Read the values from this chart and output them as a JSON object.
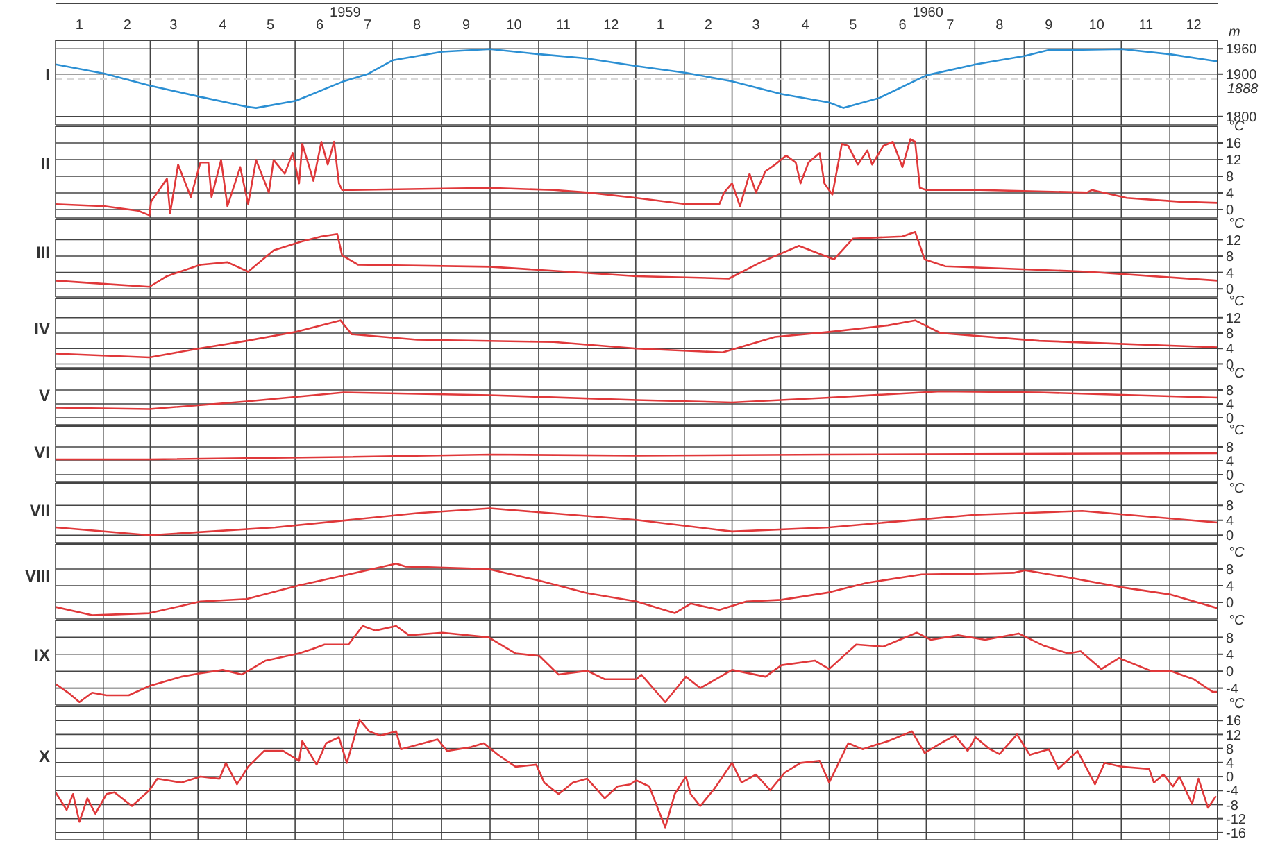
{
  "chart_data": [
    {
      "type": "line",
      "title": "I",
      "ylabel": "m",
      "color": "#2b8fd3",
      "grid": true,
      "xlim": [
        "1959-01-01",
        "1960-12-31"
      ],
      "x2lim": [
        "1959-01-01",
        "1960-12-31"
      ],
      "xticks": [
        {
          "value": "1959-01-16",
          "label": "1"
        },
        {
          "value": "1959-02-15",
          "label": "2"
        },
        {
          "value": "1959-03-16",
          "label": "3"
        },
        {
          "value": "1959-04-16",
          "label": "4"
        },
        {
          "value": "1959-05-16",
          "label": "5"
        },
        {
          "value": "1959-06-16",
          "label": "6"
        },
        {
          "value": "1959-07-16",
          "label": "7"
        },
        {
          "value": "1959-08-16",
          "label": "8"
        },
        {
          "value": "1959-09-16",
          "label": "9"
        },
        {
          "value": "1959-10-16",
          "label": "10"
        },
        {
          "value": "1959-11-16",
          "label": "11"
        },
        {
          "value": "1959-12-16",
          "label": "12"
        },
        {
          "value": "1960-01-16",
          "label": "1"
        },
        {
          "value": "1960-02-15",
          "label": "2"
        },
        {
          "value": "1960-03-16",
          "label": "3"
        },
        {
          "value": "1960-04-16",
          "label": "4"
        },
        {
          "value": "1960-05-16",
          "label": "5"
        },
        {
          "value": "1960-06-16",
          "label": "6"
        },
        {
          "value": "1960-07-16",
          "label": "7"
        },
        {
          "value": "1960-08-16",
          "label": "8"
        },
        {
          "value": "1960-09-16",
          "label": "9"
        },
        {
          "value": "1960-10-16",
          "label": "10"
        },
        {
          "value": "1960-11-16",
          "label": "11"
        },
        {
          "value": "1960-12-16",
          "label": "12"
        }
      ],
      "x2ticks": [
        {
          "value": "1959-07-02",
          "label": "1959"
        },
        {
          "value": "1960-07-02",
          "label": "1960"
        }
      ],
      "ylim": [
        1780,
        1980
      ],
      "yticks": [
        1800,
        1900,
        1960
      ],
      "ref_lines": [
        {
          "axis": "y",
          "value": 1888,
          "label": "1888",
          "color": "#d8d8d8",
          "line_style": "dashed"
        }
      ],
      "x": [
        "1959-01-01",
        "1959-02-01",
        "1959-03-01",
        "1959-04-01",
        "1959-05-01",
        "1959-05-07",
        "1959-06-01",
        "1959-07-01",
        "1959-07-16",
        "1959-08-01",
        "1959-09-01",
        "1959-10-01",
        "1959-11-01",
        "1959-12-01",
        "1960-01-01",
        "1960-02-01",
        "1960-03-01",
        "1960-04-01",
        "1960-05-01",
        "1960-05-10",
        "1960-06-01",
        "1960-07-01",
        "1960-08-01",
        "1960-09-01",
        "1960-09-16",
        "1960-10-01",
        "1960-11-01",
        "1960-12-01",
        "1960-12-31"
      ],
      "values": [
        1923,
        1901,
        1873,
        1847,
        1823,
        1820,
        1837,
        1883,
        1900,
        1933,
        1953,
        1959,
        1947,
        1937,
        1919,
        1903,
        1883,
        1853,
        1833,
        1820,
        1843,
        1897,
        1923,
        1943,
        1957,
        1957,
        1959,
        1947,
        1930
      ]
    },
    {
      "type": "line",
      "title": "II",
      "ylabel": "°C",
      "color": "#e0383a",
      "grid": true,
      "tick_labels": "y",
      "xlim": [
        "1959-01-01",
        "1960-12-31"
      ],
      "xticks": [
        {
          "value": "1959-01-16",
          "label": null
        },
        {
          "value": "1959-02-15",
          "label": null
        },
        {
          "value": "1959-03-16",
          "label": null
        },
        {
          "value": "1959-04-16",
          "label": null
        },
        {
          "value": "1959-05-16",
          "label": null
        },
        {
          "value": "1959-06-16",
          "label": null
        },
        {
          "value": "1959-07-16",
          "label": null
        },
        {
          "value": "1959-08-16",
          "label": null
        },
        {
          "value": "1959-09-16",
          "label": null
        },
        {
          "value": "1959-10-16",
          "label": null
        },
        {
          "value": "1959-11-16",
          "label": null
        },
        {
          "value": "1959-12-16",
          "label": null
        },
        {
          "value": "1960-01-16",
          "label": null
        },
        {
          "value": "1960-02-15",
          "label": null
        },
        {
          "value": "1960-03-16",
          "label": null
        },
        {
          "value": "1960-04-16",
          "label": null
        },
        {
          "value": "1960-05-16",
          "label": null
        },
        {
          "value": "1960-06-16",
          "label": null
        },
        {
          "value": "1960-07-16",
          "label": null
        },
        {
          "value": "1960-08-16",
          "label": null
        },
        {
          "value": "1960-09-16",
          "label": null
        },
        {
          "value": "1960-10-16",
          "label": null
        },
        {
          "value": "1960-11-16",
          "label": null
        },
        {
          "value": "1960-12-16",
          "label": null
        }
      ],
      "ylim": [
        -2,
        20
      ],
      "yticks": [
        0,
        4,
        8,
        12,
        16
      ],
      "x": [
        "1959-01-01",
        "1959-02-01",
        "1959-02-22",
        "1959-03-01",
        "1959-03-02",
        "1959-03-12",
        "1959-03-14",
        "1959-03-19",
        "1959-03-27",
        "1959-04-02",
        "1959-04-07",
        "1959-04-09",
        "1959-04-15",
        "1959-04-19",
        "1959-04-27",
        "1959-05-02",
        "1959-05-07",
        "1959-05-15",
        "1959-05-18",
        "1959-05-25",
        "1959-05-30",
        "1959-06-03",
        "1959-06-05",
        "1959-06-12",
        "1959-06-17",
        "1959-06-21",
        "1959-06-25",
        "1959-06-28",
        "1959-06-30",
        "1959-07-04",
        "1959-10-01",
        "1959-11-10",
        "1959-12-01",
        "1960-01-01",
        "1960-02-01",
        "1960-02-22",
        "1960-02-25",
        "1960-03-01",
        "1960-03-06",
        "1960-03-12",
        "1960-03-16",
        "1960-03-22",
        "1960-03-28",
        "1960-04-04",
        "1960-04-10",
        "1960-04-13",
        "1960-04-18",
        "1960-04-25",
        "1960-04-28",
        "1960-05-03",
        "1960-05-09",
        "1960-05-13",
        "1960-05-19",
        "1960-05-25",
        "1960-05-28",
        "1960-06-04",
        "1960-06-10",
        "1960-06-16",
        "1960-06-21",
        "1960-06-24",
        "1960-06-27",
        "1960-07-01",
        "1960-08-04",
        "1960-10-10",
        "1960-10-13",
        "1960-11-04",
        "1960-12-07",
        "1960-12-31"
      ],
      "values": [
        1.3,
        0.8,
        -0.3,
        -1.4,
        1.9,
        7.4,
        -0.9,
        10.8,
        3,
        11.3,
        11.3,
        3,
        11.9,
        0.8,
        10.2,
        1.3,
        11.9,
        4.1,
        11.9,
        8.6,
        13.6,
        6.3,
        15.8,
        6.9,
        16.3,
        10.8,
        16.3,
        6.3,
        4.7,
        4.7,
        5.2,
        4.7,
        4.1,
        2.8,
        1.3,
        1.3,
        4.1,
        6.3,
        0.8,
        8.6,
        4.1,
        9.2,
        10.8,
        13,
        11.3,
        6.3,
        11.3,
        13.6,
        6.3,
        3.6,
        15.8,
        15.3,
        10.8,
        14.2,
        10.8,
        15.3,
        16.3,
        10.2,
        16.9,
        16.3,
        5.2,
        4.7,
        4.7,
        4.1,
        4.7,
        2.8,
        1.9,
        1.6
      ]
    },
    {
      "type": "line",
      "title": "III",
      "ylabel": "°C",
      "color": "#e0383a",
      "grid": true,
      "tick_labels": "y",
      "xlim": [
        "1959-01-01",
        "1960-12-31"
      ],
      "xticks": [
        {
          "value": "1959-01-16",
          "label": null
        },
        {
          "value": "1959-02-15",
          "label": null
        },
        {
          "value": "1959-03-16",
          "label": null
        },
        {
          "value": "1959-04-16",
          "label": null
        },
        {
          "value": "1959-05-16",
          "label": null
        },
        {
          "value": "1959-06-16",
          "label": null
        },
        {
          "value": "1959-07-16",
          "label": null
        },
        {
          "value": "1959-08-16",
          "label": null
        },
        {
          "value": "1959-09-16",
          "label": null
        },
        {
          "value": "1959-10-16",
          "label": null
        },
        {
          "value": "1959-11-16",
          "label": null
        },
        {
          "value": "1959-12-16",
          "label": null
        },
        {
          "value": "1960-01-16",
          "label": null
        },
        {
          "value": "1960-02-15",
          "label": null
        },
        {
          "value": "1960-03-16",
          "label": null
        },
        {
          "value": "1960-04-16",
          "label": null
        },
        {
          "value": "1960-05-16",
          "label": null
        },
        {
          "value": "1960-06-16",
          "label": null
        },
        {
          "value": "1960-07-16",
          "label": null
        },
        {
          "value": "1960-08-16",
          "label": null
        },
        {
          "value": "1960-09-16",
          "label": null
        },
        {
          "value": "1960-10-16",
          "label": null
        },
        {
          "value": "1960-11-16",
          "label": null
        },
        {
          "value": "1960-12-16",
          "label": null
        }
      ],
      "ylim": [
        -2,
        17
      ],
      "yticks": [
        0,
        4,
        8,
        12
      ],
      "x": [
        "1959-01-01",
        "1959-02-01",
        "1959-03-01",
        "1959-03-12",
        "1959-04-02",
        "1959-04-19",
        "1959-05-02",
        "1959-05-18",
        "1959-06-05",
        "1959-06-17",
        "1959-06-27",
        "1959-06-30",
        "1959-07-10",
        "1959-10-01",
        "1960-01-01",
        "1960-02-01",
        "1960-02-28",
        "1960-03-19",
        "1960-04-12",
        "1960-05-04",
        "1960-05-16",
        "1960-06-16",
        "1960-06-24",
        "1960-06-30",
        "1960-07-13",
        "1960-10-10",
        "1960-12-31"
      ],
      "values": [
        2,
        1.2,
        0.5,
        3.1,
        5.9,
        6.5,
        4.2,
        9.4,
        11.6,
        12.8,
        13.4,
        8.2,
        5.9,
        5.4,
        3.1,
        2.8,
        2.5,
        6.5,
        10.5,
        7.2,
        12.3,
        12.8,
        13.9,
        7.2,
        5.5,
        4.2,
        2
      ]
    },
    {
      "type": "line",
      "title": "IV",
      "ylabel": "°C",
      "color": "#e0383a",
      "grid": true,
      "tick_labels": "y",
      "xlim": [
        "1959-01-01",
        "1960-12-31"
      ],
      "xticks": [
        {
          "value": "1959-01-16",
          "label": null
        },
        {
          "value": "1959-02-15",
          "label": null
        },
        {
          "value": "1959-03-16",
          "label": null
        },
        {
          "value": "1959-04-16",
          "label": null
        },
        {
          "value": "1959-05-16",
          "label": null
        },
        {
          "value": "1959-06-16",
          "label": null
        },
        {
          "value": "1959-07-16",
          "label": null
        },
        {
          "value": "1959-08-16",
          "label": null
        },
        {
          "value": "1959-09-16",
          "label": null
        },
        {
          "value": "1959-10-16",
          "label": null
        },
        {
          "value": "1959-11-16",
          "label": null
        },
        {
          "value": "1959-12-16",
          "label": null
        },
        {
          "value": "1960-01-16",
          "label": null
        },
        {
          "value": "1960-02-15",
          "label": null
        },
        {
          "value": "1960-03-16",
          "label": null
        },
        {
          "value": "1960-04-16",
          "label": null
        },
        {
          "value": "1960-05-16",
          "label": null
        },
        {
          "value": "1960-06-16",
          "label": null
        },
        {
          "value": "1960-07-16",
          "label": null
        },
        {
          "value": "1960-08-16",
          "label": null
        },
        {
          "value": "1960-09-16",
          "label": null
        },
        {
          "value": "1960-10-16",
          "label": null
        },
        {
          "value": "1960-11-16",
          "label": null
        },
        {
          "value": "1960-12-16",
          "label": null
        }
      ],
      "ylim": [
        -1,
        17
      ],
      "yticks": [
        0,
        4,
        8,
        12
      ],
      "x": [
        "1959-01-01",
        "1959-03-01",
        "1959-04-01",
        "1959-05-01",
        "1959-06-01",
        "1959-06-29",
        "1959-07-06",
        "1959-08-16",
        "1959-11-10",
        "1960-01-01",
        "1960-02-24",
        "1960-03-28",
        "1960-05-01",
        "1960-06-07",
        "1960-06-24",
        "1960-07-10",
        "1960-09-10",
        "1960-12-31"
      ],
      "values": [
        2.7,
        1.7,
        4,
        6,
        8.3,
        11.3,
        7.7,
        6.3,
        5.7,
        4,
        3,
        7,
        8.3,
        10,
        11.3,
        8,
        6,
        4.3
      ]
    },
    {
      "type": "line",
      "title": "V",
      "ylabel": "°C",
      "color": "#e0383a",
      "grid": true,
      "tick_labels": "y",
      "xlim": [
        "1959-01-01",
        "1960-12-31"
      ],
      "xticks": [
        {
          "value": "1959-01-16",
          "label": null
        },
        {
          "value": "1959-02-15",
          "label": null
        },
        {
          "value": "1959-03-16",
          "label": null
        },
        {
          "value": "1959-04-16",
          "label": null
        },
        {
          "value": "1959-05-16",
          "label": null
        },
        {
          "value": "1959-06-16",
          "label": null
        },
        {
          "value": "1959-07-16",
          "label": null
        },
        {
          "value": "1959-08-16",
          "label": null
        },
        {
          "value": "1959-09-16",
          "label": null
        },
        {
          "value": "1959-10-16",
          "label": null
        },
        {
          "value": "1959-11-16",
          "label": null
        },
        {
          "value": "1959-12-16",
          "label": null
        },
        {
          "value": "1960-01-16",
          "label": null
        },
        {
          "value": "1960-02-15",
          "label": null
        },
        {
          "value": "1960-03-16",
          "label": null
        },
        {
          "value": "1960-04-16",
          "label": null
        },
        {
          "value": "1960-05-16",
          "label": null
        },
        {
          "value": "1960-06-16",
          "label": null
        },
        {
          "value": "1960-07-16",
          "label": null
        },
        {
          "value": "1960-08-16",
          "label": null
        },
        {
          "value": "1960-09-16",
          "label": null
        },
        {
          "value": "1960-10-16",
          "label": null
        },
        {
          "value": "1960-11-16",
          "label": null
        },
        {
          "value": "1960-12-16",
          "label": null
        }
      ],
      "ylim": [
        -2,
        14
      ],
      "yticks": [
        0,
        4,
        8
      ],
      "x": [
        "1959-01-01",
        "1959-03-01",
        "1959-05-01",
        "1959-07-01",
        "1959-10-01",
        "1960-01-01",
        "1960-03-01",
        "1960-05-01",
        "1960-07-10",
        "1960-09-10",
        "1960-12-31"
      ],
      "values": [
        2.9,
        2.5,
        4.7,
        7.3,
        6.5,
        5.1,
        4.4,
        5.8,
        7.6,
        7.3,
        5.8
      ]
    },
    {
      "type": "line",
      "title": "VI",
      "ylabel": "°C",
      "color": "#e0383a",
      "grid": true,
      "tick_labels": "y",
      "xlim": [
        "1959-01-01",
        "1960-12-31"
      ],
      "xticks": [
        {
          "value": "1959-01-16",
          "label": null
        },
        {
          "value": "1959-02-15",
          "label": null
        },
        {
          "value": "1959-03-16",
          "label": null
        },
        {
          "value": "1959-04-16",
          "label": null
        },
        {
          "value": "1959-05-16",
          "label": null
        },
        {
          "value": "1959-06-16",
          "label": null
        },
        {
          "value": "1959-07-16",
          "label": null
        },
        {
          "value": "1959-08-16",
          "label": null
        },
        {
          "value": "1959-09-16",
          "label": null
        },
        {
          "value": "1959-10-16",
          "label": null
        },
        {
          "value": "1959-11-16",
          "label": null
        },
        {
          "value": "1959-12-16",
          "label": null
        },
        {
          "value": "1960-01-16",
          "label": null
        },
        {
          "value": "1960-02-15",
          "label": null
        },
        {
          "value": "1960-03-16",
          "label": null
        },
        {
          "value": "1960-04-16",
          "label": null
        },
        {
          "value": "1960-05-16",
          "label": null
        },
        {
          "value": "1960-06-16",
          "label": null
        },
        {
          "value": "1960-07-16",
          "label": null
        },
        {
          "value": "1960-08-16",
          "label": null
        },
        {
          "value": "1960-09-16",
          "label": null
        },
        {
          "value": "1960-10-16",
          "label": null
        },
        {
          "value": "1960-11-16",
          "label": null
        },
        {
          "value": "1960-12-16",
          "label": null
        }
      ],
      "ylim": [
        -2,
        14
      ],
      "yticks": [
        0,
        4,
        8
      ],
      "x": [
        "1959-01-01",
        "1959-03-01",
        "1959-07-01",
        "1959-10-01",
        "1960-01-01",
        "1960-05-01",
        "1960-12-31"
      ],
      "values": [
        4.4,
        4.4,
        5.1,
        5.8,
        5.5,
        5.8,
        6.2
      ]
    },
    {
      "type": "line",
      "title": "VII",
      "ylabel": "°C",
      "color": "#e0383a",
      "grid": true,
      "tick_labels": "y",
      "xlim": [
        "1959-01-01",
        "1960-12-31"
      ],
      "xticks": [
        {
          "value": "1959-01-16",
          "label": null
        },
        {
          "value": "1959-02-15",
          "label": null
        },
        {
          "value": "1959-03-16",
          "label": null
        },
        {
          "value": "1959-04-16",
          "label": null
        },
        {
          "value": "1959-05-16",
          "label": null
        },
        {
          "value": "1959-06-16",
          "label": null
        },
        {
          "value": "1959-07-16",
          "label": null
        },
        {
          "value": "1959-08-16",
          "label": null
        },
        {
          "value": "1959-09-16",
          "label": null
        },
        {
          "value": "1959-10-16",
          "label": null
        },
        {
          "value": "1959-11-16",
          "label": null
        },
        {
          "value": "1959-12-16",
          "label": null
        },
        {
          "value": "1960-01-16",
          "label": null
        },
        {
          "value": "1960-02-15",
          "label": null
        },
        {
          "value": "1960-03-16",
          "label": null
        },
        {
          "value": "1960-04-16",
          "label": null
        },
        {
          "value": "1960-05-16",
          "label": null
        },
        {
          "value": "1960-06-16",
          "label": null
        },
        {
          "value": "1960-07-16",
          "label": null
        },
        {
          "value": "1960-08-16",
          "label": null
        },
        {
          "value": "1960-09-16",
          "label": null
        },
        {
          "value": "1960-10-16",
          "label": null
        },
        {
          "value": "1960-11-16",
          "label": null
        },
        {
          "value": "1960-12-16",
          "label": null
        }
      ],
      "ylim": [
        -2,
        14
      ],
      "yticks": [
        0,
        4,
        8
      ],
      "x": [
        "1959-01-01",
        "1959-03-01",
        "1959-05-19",
        "1959-08-16",
        "1959-10-01",
        "1960-01-01",
        "1960-03-01",
        "1960-05-01",
        "1960-08-01",
        "1960-10-07",
        "1960-12-31"
      ],
      "values": [
        2.1,
        0,
        2.1,
        5.9,
        7.2,
        4.1,
        1,
        2.1,
        5.5,
        6.5,
        3.4
      ]
    },
    {
      "type": "line",
      "title": "VIII",
      "ylabel": "°C",
      "color": "#e0383a",
      "grid": true,
      "tick_labels": "y",
      "xlim": [
        "1959-01-01",
        "1960-12-31"
      ],
      "xticks": [
        {
          "value": "1959-01-16",
          "label": null
        },
        {
          "value": "1959-02-15",
          "label": null
        },
        {
          "value": "1959-03-16",
          "label": null
        },
        {
          "value": "1959-04-16",
          "label": null
        },
        {
          "value": "1959-05-16",
          "label": null
        },
        {
          "value": "1959-06-16",
          "label": null
        },
        {
          "value": "1959-07-16",
          "label": null
        },
        {
          "value": "1959-08-16",
          "label": null
        },
        {
          "value": "1959-09-16",
          "label": null
        },
        {
          "value": "1959-10-16",
          "label": null
        },
        {
          "value": "1959-11-16",
          "label": null
        },
        {
          "value": "1959-12-16",
          "label": null
        },
        {
          "value": "1960-01-16",
          "label": null
        },
        {
          "value": "1960-02-15",
          "label": null
        },
        {
          "value": "1960-03-16",
          "label": null
        },
        {
          "value": "1960-04-16",
          "label": null
        },
        {
          "value": "1960-05-16",
          "label": null
        },
        {
          "value": "1960-06-16",
          "label": null
        },
        {
          "value": "1960-07-16",
          "label": null
        },
        {
          "value": "1960-08-16",
          "label": null
        },
        {
          "value": "1960-09-16",
          "label": null
        },
        {
          "value": "1960-10-16",
          "label": null
        },
        {
          "value": "1960-11-16",
          "label": null
        },
        {
          "value": "1960-12-16",
          "label": null
        }
      ],
      "ylim": [
        -4,
        14
      ],
      "yticks": [
        0,
        4,
        8
      ],
      "x": [
        "1959-01-01",
        "1959-01-24",
        "1959-03-01",
        "1959-04-02",
        "1959-05-01",
        "1959-06-03",
        "1959-07-04",
        "1959-08-03",
        "1959-08-09",
        "1959-09-30",
        "1959-11-01",
        "1959-12-01",
        "1960-01-01",
        "1960-01-25",
        "1960-02-04",
        "1960-02-22",
        "1960-03-10",
        "1960-04-01",
        "1960-05-01",
        "1960-05-25",
        "1960-06-28",
        "1960-08-01",
        "1960-08-25",
        "1960-09-01",
        "1960-10-01",
        "1960-11-01",
        "1960-12-01",
        "1960-12-31"
      ],
      "values": [
        -1.1,
        -3.1,
        -2.6,
        0.2,
        0.8,
        4.1,
        6.7,
        9.3,
        8.6,
        8,
        5.2,
        2.2,
        0.2,
        -2.6,
        -0.3,
        -1.8,
        0.2,
        0.6,
        2.4,
        4.7,
        6.7,
        6.9,
        7.1,
        7.7,
        5.8,
        3.6,
        1.9,
        -1.4
      ]
    },
    {
      "type": "line",
      "title": "IX",
      "ylabel": "°C",
      "color": "#e0383a",
      "grid": true,
      "tick_labels": "y",
      "xlim": [
        "1959-01-01",
        "1960-12-31"
      ],
      "xticks": [
        {
          "value": "1959-01-16",
          "label": null
        },
        {
          "value": "1959-02-15",
          "label": null
        },
        {
          "value": "1959-03-16",
          "label": null
        },
        {
          "value": "1959-04-16",
          "label": null
        },
        {
          "value": "1959-05-16",
          "label": null
        },
        {
          "value": "1959-06-16",
          "label": null
        },
        {
          "value": "1959-07-16",
          "label": null
        },
        {
          "value": "1959-08-16",
          "label": null
        },
        {
          "value": "1959-09-16",
          "label": null
        },
        {
          "value": "1959-10-16",
          "label": null
        },
        {
          "value": "1959-11-16",
          "label": null
        },
        {
          "value": "1959-12-16",
          "label": null
        },
        {
          "value": "1960-01-16",
          "label": null
        },
        {
          "value": "1960-02-15",
          "label": null
        },
        {
          "value": "1960-03-16",
          "label": null
        },
        {
          "value": "1960-04-16",
          "label": null
        },
        {
          "value": "1960-05-16",
          "label": null
        },
        {
          "value": "1960-06-16",
          "label": null
        },
        {
          "value": "1960-07-16",
          "label": null
        },
        {
          "value": "1960-08-16",
          "label": null
        },
        {
          "value": "1960-09-16",
          "label": null
        },
        {
          "value": "1960-10-16",
          "label": null
        },
        {
          "value": "1960-11-16",
          "label": null
        },
        {
          "value": "1960-12-16",
          "label": null
        }
      ],
      "ylim": [
        -8,
        12
      ],
      "yticks": [
        -4,
        0,
        4,
        8
      ],
      "x": [
        "1959-01-01",
        "1959-01-09",
        "1959-01-16",
        "1959-01-24",
        "1959-02-02",
        "1959-02-16",
        "1959-03-01",
        "1959-03-21",
        "1959-04-02",
        "1959-04-16",
        "1959-04-28",
        "1959-05-13",
        "1959-06-03",
        "1959-06-11",
        "1959-06-19",
        "1959-07-04",
        "1959-07-13",
        "1959-07-21",
        "1959-08-03",
        "1959-08-11",
        "1959-09-01",
        "1959-09-30",
        "1959-10-17",
        "1959-11-01",
        "1959-11-13",
        "1959-12-01",
        "1959-12-12",
        "1960-01-01",
        "1960-01-04",
        "1960-01-19",
        "1960-02-01",
        "1960-02-10",
        "1960-03-01",
        "1960-03-22",
        "1960-04-01",
        "1960-04-22",
        "1960-05-01",
        "1960-05-18",
        "1960-06-04",
        "1960-06-25",
        "1960-07-04",
        "1960-07-21",
        "1960-08-07",
        "1960-08-28",
        "1960-09-13",
        "1960-09-28",
        "1960-10-06",
        "1960-10-19",
        "1960-10-30",
        "1960-11-19",
        "1960-12-01",
        "1960-12-16",
        "1960-12-28",
        "1960-12-31"
      ],
      "values": [
        -3,
        -5.1,
        -7.3,
        -5.1,
        -5.7,
        -5.7,
        -3.5,
        -1.3,
        -0.5,
        0.3,
        -0.8,
        2.5,
        4.2,
        5.2,
        6.3,
        6.3,
        10.7,
        9.6,
        10.7,
        8.5,
        9.1,
        8,
        4.2,
        3.6,
        -0.8,
        0.1,
        -1.9,
        -1.9,
        -0.8,
        -7.3,
        -1.3,
        -4,
        0.3,
        -1.3,
        1.4,
        2.5,
        0.5,
        6.3,
        5.8,
        9.1,
        7.4,
        8.5,
        7.4,
        8.9,
        6,
        4.2,
        4.7,
        0.5,
        3.1,
        0.1,
        0.1,
        -1.9,
        -4.9,
        -4.9
      ]
    },
    {
      "type": "line",
      "title": "X",
      "ylabel": "°C",
      "color": "#e0383a",
      "grid": true,
      "tick_labels": "y",
      "xlim": [
        "1959-01-01",
        "1960-12-31"
      ],
      "xticks": [
        {
          "value": "1959-01-16",
          "label": null
        },
        {
          "value": "1959-02-15",
          "label": null
        },
        {
          "value": "1959-03-16",
          "label": null
        },
        {
          "value": "1959-04-16",
          "label": null
        },
        {
          "value": "1959-05-16",
          "label": null
        },
        {
          "value": "1959-06-16",
          "label": null
        },
        {
          "value": "1959-07-16",
          "label": null
        },
        {
          "value": "1959-08-16",
          "label": null
        },
        {
          "value": "1959-09-16",
          "label": null
        },
        {
          "value": "1959-10-16",
          "label": null
        },
        {
          "value": "1959-11-16",
          "label": null
        },
        {
          "value": "1959-12-16",
          "label": null
        },
        {
          "value": "1960-01-16",
          "label": null
        },
        {
          "value": "1960-02-15",
          "label": null
        },
        {
          "value": "1960-03-16",
          "label": null
        },
        {
          "value": "1960-04-16",
          "label": null
        },
        {
          "value": "1960-05-16",
          "label": null
        },
        {
          "value": "1960-06-16",
          "label": null
        },
        {
          "value": "1960-07-16",
          "label": null
        },
        {
          "value": "1960-08-16",
          "label": null
        },
        {
          "value": "1960-09-16",
          "label": null
        },
        {
          "value": "1960-10-16",
          "label": null
        },
        {
          "value": "1960-11-16",
          "label": null
        },
        {
          "value": "1960-12-16",
          "label": null
        }
      ],
      "ylim": [
        -18,
        20
      ],
      "yticks": [
        -16,
        -12,
        -8,
        -4,
        0,
        4,
        8,
        12,
        16
      ],
      "x": [
        "1959-01-01",
        "1959-01-08",
        "1959-01-12",
        "1959-01-16",
        "1959-01-21",
        "1959-01-26",
        "1959-02-02",
        "1959-02-07",
        "1959-02-18",
        "1959-03-01",
        "1959-03-06",
        "1959-03-21",
        "1959-04-02",
        "1959-04-14",
        "1959-04-18",
        "1959-04-25",
        "1959-05-02",
        "1959-05-12",
        "1959-05-24",
        "1959-06-03",
        "1959-06-05",
        "1959-06-14",
        "1959-06-20",
        "1959-06-28",
        "1959-07-03",
        "1959-07-11",
        "1959-07-17",
        "1959-07-24",
        "1959-08-03",
        "1959-08-06",
        "1959-08-20",
        "1959-08-29",
        "1959-09-04",
        "1959-09-19",
        "1959-09-27",
        "1959-10-06",
        "1959-10-17",
        "1959-10-30",
        "1959-11-04",
        "1959-11-13",
        "1959-11-22",
        "1959-12-01",
        "1959-12-12",
        "1959-12-20",
        "1959-12-28",
        "1960-01-01",
        "1960-01-09",
        "1960-01-19",
        "1960-01-25",
        "1960-02-01",
        "1960-02-04",
        "1960-02-10",
        "1960-02-19",
        "1960-03-01",
        "1960-03-07",
        "1960-03-16",
        "1960-03-25",
        "1960-04-03",
        "1960-04-13",
        "1960-04-25",
        "1960-05-01",
        "1960-05-13",
        "1960-05-22",
        "1960-05-30",
        "1960-06-07",
        "1960-06-22",
        "1960-06-30",
        "1960-07-10",
        "1960-07-19",
        "1960-07-27",
        "1960-08-01",
        "1960-08-10",
        "1960-08-16",
        "1960-08-27",
        "1960-09-04",
        "1960-09-16",
        "1960-09-22",
        "1960-10-04",
        "1960-10-15",
        "1960-10-21",
        "1960-11-01",
        "1960-11-18",
        "1960-11-21",
        "1960-11-27",
        "1960-12-03",
        "1960-12-07",
        "1960-12-15",
        "1960-12-19",
        "1960-12-25",
        "1960-12-30"
      ],
      "values": [
        -4.5,
        -9.5,
        -5,
        -12.9,
        -6.2,
        -10.6,
        -5,
        -4.5,
        -8.4,
        -3.9,
        -0.6,
        -1.7,
        0,
        -0.6,
        3.9,
        -2.2,
        2.8,
        7.3,
        7.3,
        4.5,
        10.1,
        3.4,
        9.5,
        11.2,
        3.9,
        16.2,
        12.9,
        11.7,
        12.9,
        7.8,
        9.5,
        10.6,
        7.3,
        8.4,
        9.5,
        6.2,
        2.8,
        3.4,
        -1.7,
        -5,
        -1.7,
        -0.6,
        -6.2,
        -2.8,
        -2.2,
        -1.1,
        -2.8,
        -14.5,
        -5,
        0,
        -5,
        -8.4,
        -3.4,
        3.9,
        -1.7,
        0.6,
        -3.9,
        1.1,
        3.9,
        4.5,
        -1.7,
        9.5,
        7.8,
        9,
        10.1,
        12.9,
        6.7,
        9.5,
        11.7,
        7.3,
        11.2,
        7.8,
        6.4,
        12,
        6.2,
        7.8,
        2.2,
        7.3,
        -2.2,
        3.9,
        2.8,
        2.2,
        -1.7,
        0.6,
        -2.8,
        0,
        -7.8,
        -0.6,
        -8.9,
        -5.6
      ]
    }
  ]
}
